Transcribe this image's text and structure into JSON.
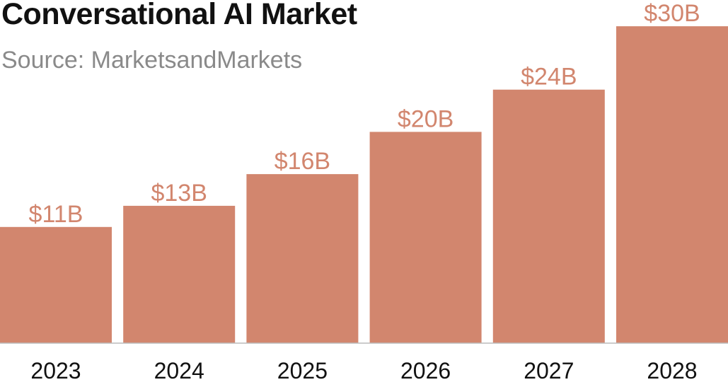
{
  "chart_data": {
    "type": "bar",
    "title": "Conversational AI Market",
    "subtitle": "Source: MarketsandMarkets",
    "categories": [
      "2023",
      "2024",
      "2025",
      "2026",
      "2027",
      "2028"
    ],
    "values": [
      11,
      13,
      16,
      20,
      24,
      30
    ],
    "data_labels": [
      "$11B",
      "$13B",
      "$16B",
      "$20B",
      "$24B",
      "$30B"
    ],
    "unit": "billion USD",
    "xlabel": "",
    "ylabel": "",
    "grid": false,
    "legend": "none",
    "bar_color": "#d2866e",
    "baseline_color": "#bbbbbb"
  }
}
